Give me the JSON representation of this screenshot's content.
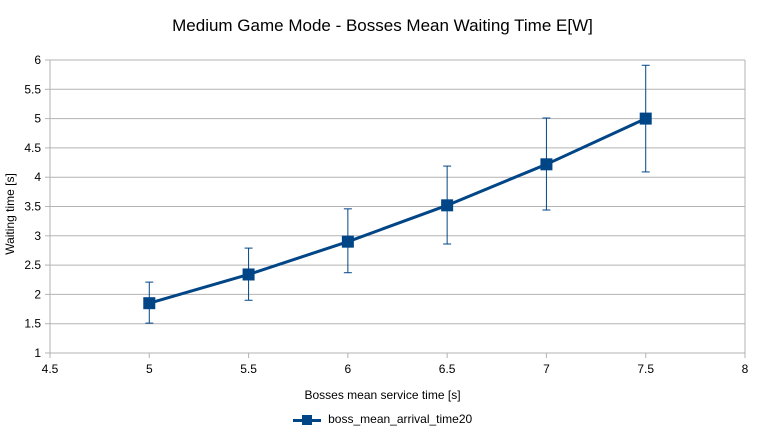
{
  "chart_data": {
    "type": "line",
    "title": "Medium Game Mode - Bosses Mean Waiting Time E[W]",
    "xlabel": "Bosses mean service time [s]",
    "ylabel": "Waiting time [s]",
    "xlim": [
      4.5,
      8
    ],
    "ylim": [
      1,
      6
    ],
    "x_ticks": [
      "4.5",
      "5",
      "5.5",
      "6",
      "6.5",
      "7",
      "7.5",
      "8"
    ],
    "y_ticks": [
      "1",
      "1.5",
      "2",
      "2.5",
      "3",
      "3.5",
      "4",
      "4.5",
      "5",
      "5.5",
      "6"
    ],
    "grid": "horizontal",
    "legend_position": "bottom",
    "series": [
      {
        "name": "boss_mean_arrival_time20",
        "color": "#004586",
        "marker": "square",
        "x": [
          5,
          5.5,
          6,
          6.5,
          7,
          7.5
        ],
        "y": [
          1.85,
          2.34,
          2.9,
          3.52,
          4.22,
          5.0
        ],
        "error_low": [
          1.51,
          1.9,
          2.37,
          2.86,
          3.44,
          4.09
        ],
        "error_high": [
          2.21,
          2.79,
          3.46,
          4.19,
          5.01,
          5.91
        ]
      }
    ]
  }
}
